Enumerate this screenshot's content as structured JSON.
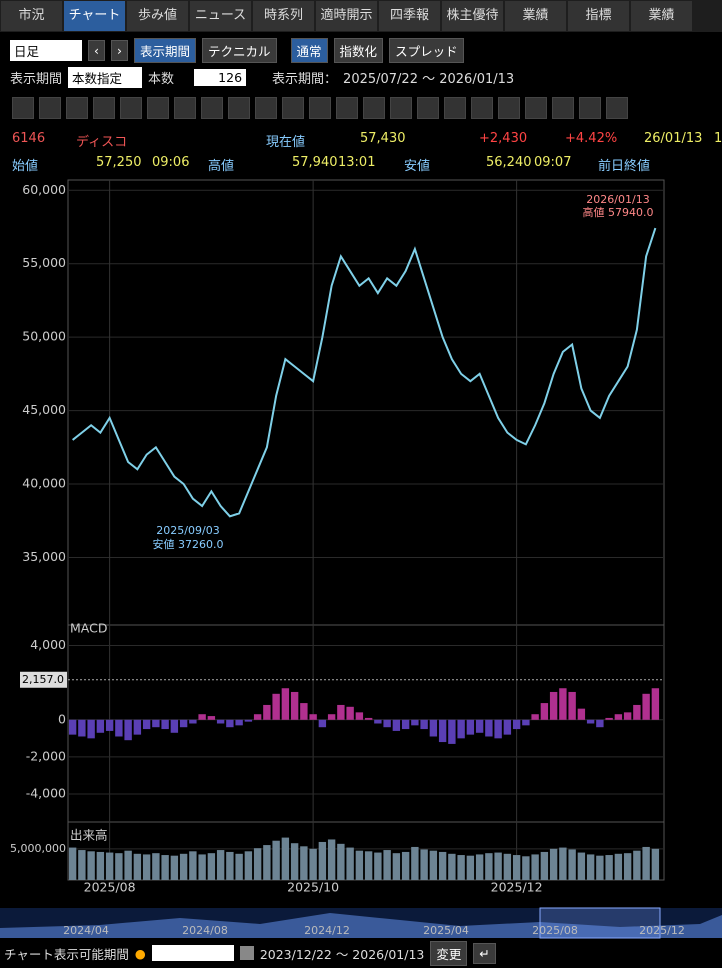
{
  "tabs": [
    "市況",
    "チャート",
    "歩み値",
    "ニュース",
    "時系列",
    "適時開示",
    "四季報",
    "株主優待",
    "業績",
    "指標",
    "業績"
  ],
  "toolbar": {
    "interval": "日足",
    "period_button": "表示期間",
    "technical": "テクニカル",
    "modes": [
      "通常",
      "指数化",
      "スプレッド"
    ]
  },
  "period_row": {
    "label": "表示期間",
    "mode": "本数指定",
    "count_label": "本数",
    "count": "126",
    "range_label": "表示期間：",
    "range": "2025/07/22 ～ 2026/01/13"
  },
  "quote": {
    "code": "6146",
    "name": "ディスコ",
    "price_label": "現在値",
    "price": "57,430",
    "change": "+2,430",
    "change_pct": "+4.42%",
    "date": "26/01/13",
    "extra": "1",
    "open_label": "始値",
    "open": "57,250",
    "open_time": "09:06",
    "high_label": "高値",
    "high": "57,940",
    "high_time": "13:01",
    "low_label": "安値",
    "low": "56,240",
    "low_time": "09:07",
    "prev_label": "前日終値"
  },
  "chart_data": [
    {
      "type": "line",
      "color": "#7fd0e8",
      "categories": [
        null,
        null,
        null,
        null,
        "2025/08",
        null,
        null,
        null,
        null,
        null,
        null,
        null,
        null,
        null,
        null,
        null,
        null,
        null,
        null,
        null,
        null,
        null,
        null,
        null,
        null,
        null,
        "2025/10",
        null,
        null,
        null,
        null,
        null,
        null,
        null,
        null,
        null,
        null,
        null,
        null,
        null,
        null,
        null,
        null,
        null,
        null,
        null,
        null,
        null,
        "2025/12",
        null,
        null,
        null,
        null,
        null,
        null,
        null,
        null,
        null,
        null,
        null,
        null,
        null,
        null,
        null
      ],
      "values": [
        43000,
        43500,
        44000,
        43500,
        44500,
        43000,
        41500,
        41000,
        42000,
        42500,
        41500,
        40500,
        40000,
        39000,
        38500,
        39500,
        38500,
        37800,
        38000,
        39500,
        41000,
        42500,
        46000,
        48500,
        48000,
        47500,
        47000,
        50000,
        53500,
        55500,
        54500,
        53500,
        54000,
        53000,
        54000,
        53500,
        54500,
        56000,
        54000,
        52000,
        50000,
        48500,
        47500,
        47000,
        47500,
        46000,
        44500,
        43500,
        43000,
        42700,
        44000,
        45500,
        47500,
        49000,
        49500,
        46500,
        45000,
        44500,
        46000,
        47000,
        48000,
        50500,
        55500,
        57430
      ],
      "ylim": [
        30400,
        60700
      ],
      "yticks": [
        {
          "value": 35000,
          "label": "35,000"
        },
        {
          "value": 40000,
          "label": "40,000"
        },
        {
          "value": 45000,
          "label": "45,000"
        },
        {
          "value": 50000,
          "label": "50,000"
        },
        {
          "value": 55000,
          "label": "55,000"
        },
        {
          "value": 60000,
          "label": "60,000"
        }
      ],
      "annotations": [
        "2026/01/13",
        "高値 57940.0",
        "2025/09/03",
        "安値 37260.0"
      ]
    },
    {
      "type": "bar",
      "title": "MACD",
      "colors": [
        "#b0308f",
        "#5a3fb5"
      ],
      "values": [
        -800,
        -900,
        -1000,
        -700,
        -600,
        -900,
        -1100,
        -800,
        -500,
        -400,
        -500,
        -700,
        -400,
        -200,
        300,
        200,
        -200,
        -400,
        -300,
        -100,
        300,
        800,
        1400,
        1700,
        1500,
        900,
        300,
        -400,
        300,
        800,
        700,
        400,
        100,
        -200,
        -400,
        -600,
        -500,
        -300,
        -500,
        -900,
        -1200,
        -1300,
        -1000,
        -800,
        -700,
        -900,
        -1000,
        -800,
        -500,
        -300,
        300,
        900,
        1500,
        1700,
        1500,
        600,
        -200,
        -400,
        100,
        300,
        400,
        800,
        1400,
        1700
      ],
      "ylim": [
        -5400,
        5000
      ],
      "yticks": [
        {
          "value": -4000,
          "label": "-4,000"
        },
        {
          "value": -2000,
          "label": "-2,000"
        },
        0,
        {
          "value": 4000,
          "label": "4,000"
        }
      ],
      "marker": {
        "value": 2157,
        "label": "2,157.0"
      }
    },
    {
      "type": "bar",
      "title": "出来高",
      "color": "#6d8494",
      "values": [
        5200000,
        4800000,
        4600000,
        4500000,
        4400000,
        4300000,
        4700000,
        4200000,
        4100000,
        4300000,
        4000000,
        3900000,
        4200000,
        4600000,
        4100000,
        4300000,
        4800000,
        4500000,
        4200000,
        4600000,
        5100000,
        5600000,
        6300000,
        6800000,
        5900000,
        5400000,
        5000000,
        6100000,
        6500000,
        5800000,
        5200000,
        4700000,
        4600000,
        4400000,
        4800000,
        4300000,
        4500000,
        5300000,
        4900000,
        4700000,
        4500000,
        4200000,
        4000000,
        3900000,
        4100000,
        4300000,
        4400000,
        4200000,
        4000000,
        3800000,
        4100000,
        4500000,
        5000000,
        5200000,
        4900000,
        4400000,
        4100000,
        3900000,
        4000000,
        4200000,
        4300000,
        4700000,
        5300000,
        5000000
      ],
      "ylim": [
        0,
        9300000
      ],
      "yticks": [
        {
          "value": 5000000,
          "label": "5,000,000"
        }
      ]
    }
  ],
  "navigator": {
    "labels": [
      "2024/04",
      "2024/08",
      "2024/12",
      "2025/04",
      "2025/08",
      "2025/12"
    ]
  },
  "footer": {
    "label": "チャート表示可能期間",
    "range": "2023/12/22 ～ 2026/01/13",
    "button": "変更"
  }
}
